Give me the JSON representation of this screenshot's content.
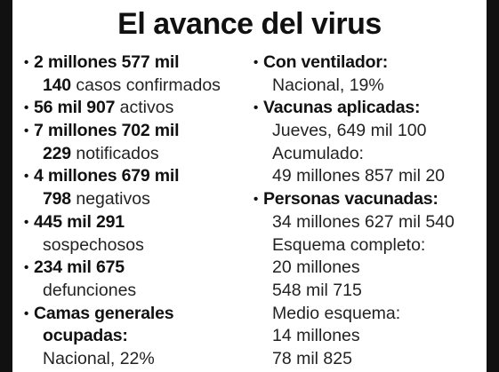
{
  "title": "El avance del virus",
  "left_column": {
    "confirmed": {
      "number": "2 millones 577 mil",
      "number2": "140",
      "label": "casos confirmados"
    },
    "active": {
      "number": "56 mil 907",
      "label": "activos"
    },
    "notified": {
      "number": "7 millones 702 mil",
      "number2": "229",
      "label": "notificados"
    },
    "negative": {
      "number": "4 millones 679 mil",
      "number2": "798",
      "label": "negativos"
    },
    "suspected": {
      "number": "445 mil 291",
      "label": "sospechosos"
    },
    "deaths": {
      "number": "234 mil 675",
      "label": "defunciones"
    },
    "beds": {
      "label1": "Camas generales",
      "label2": "ocupadas:",
      "value": "Nacional, 22%"
    }
  },
  "right_column": {
    "ventilator": {
      "label": "Con ventilador:",
      "value": "Nacional, 19%"
    },
    "vaccines_applied": {
      "label": "Vacunas aplicadas:",
      "day_value": "Jueves, 649 mil 100",
      "cumulative_label": "Acumulado:",
      "cumulative_value": "49 millones 857 mil 20"
    },
    "people_vaccinated": {
      "label": "Personas vacunadas:",
      "value": "34 millones 627 mil 540",
      "complete_label": "Esquema completo:",
      "complete_value1": "20 millones",
      "complete_value2": "548 mil 715",
      "half_label": "Medio esquema:",
      "half_value1": "14 millones",
      "half_value2": "78 mil 825"
    }
  }
}
